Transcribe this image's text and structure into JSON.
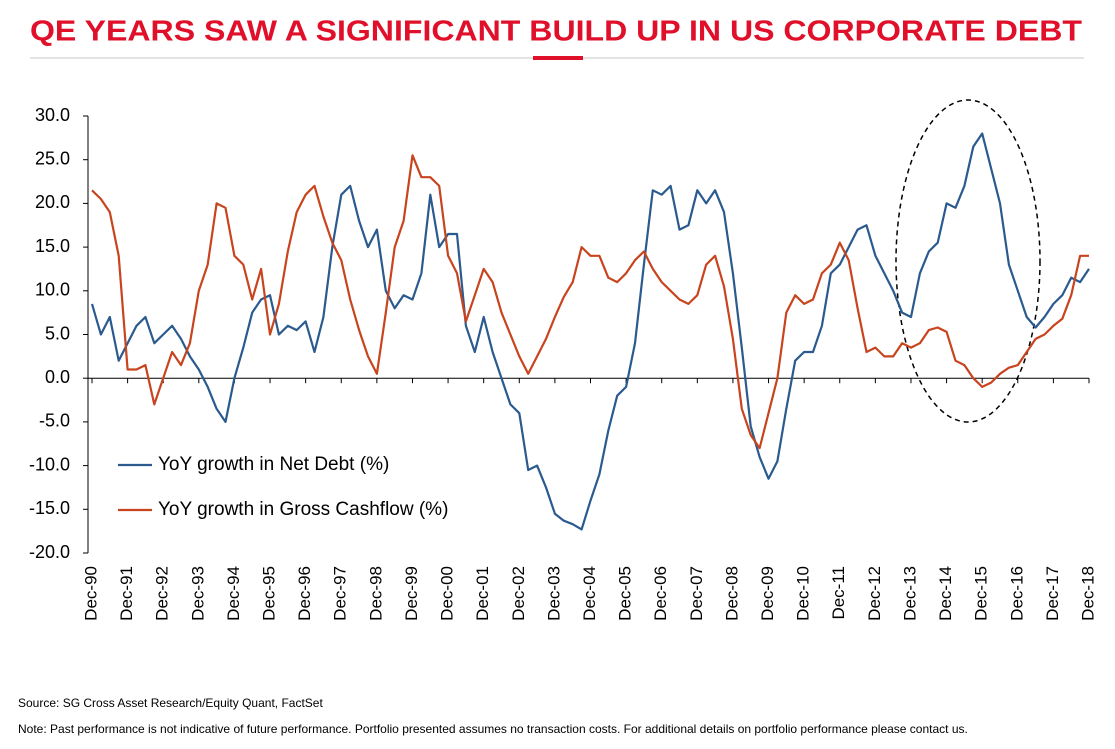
{
  "chart_data": {
    "type": "line",
    "title": "QE YEARS SAW A SIGNIFICANT BUILD UP IN US CORPORATE DEBT",
    "source": "Source: SG Cross Asset Research/Equity Quant, FactSet",
    "note": "Note: Past performance is not indicative of future performance. Portfolio presented assumes no transaction costs. For additional details on portfolio performance please contact us.",
    "categories": [
      "Dec-90",
      null,
      null,
      null,
      "Dec-91",
      null,
      null,
      null,
      "Dec-92",
      null,
      null,
      null,
      "Dec-93",
      null,
      null,
      null,
      "Dec-94",
      null,
      null,
      null,
      "Dec-95",
      null,
      null,
      null,
      "Dec-96",
      null,
      null,
      null,
      "Dec-97",
      null,
      null,
      null,
      "Dec-98",
      null,
      null,
      null,
      "Dec-99",
      null,
      null,
      null,
      "Dec-00",
      null,
      null,
      null,
      "Dec-01",
      null,
      null,
      null,
      "Dec-02",
      null,
      null,
      null,
      "Dec-03",
      null,
      null,
      null,
      "Dec-04",
      null,
      null,
      null,
      "Dec-05",
      null,
      null,
      null,
      "Dec-06",
      null,
      null,
      null,
      "Dec-07",
      null,
      null,
      null,
      "Dec-08",
      null,
      null,
      null,
      "Dec-09",
      null,
      null,
      null,
      "Dec-10",
      null,
      null,
      null,
      "Dec-11",
      null,
      null,
      null,
      "Dec-12",
      null,
      null,
      null,
      "Dec-13",
      null,
      null,
      null,
      "Dec-14",
      null,
      null,
      null,
      "Dec-15",
      null,
      null,
      null,
      "Dec-16",
      null,
      null,
      null,
      "Dec-17",
      null,
      null,
      null,
      "Dec-18"
    ],
    "series": [
      {
        "name": "YoY growth in Net Debt (%)",
        "color": "#2a5a8e",
        "values": [
          8.5,
          5,
          7,
          2,
          4,
          6,
          7,
          4,
          5,
          6,
          4.5,
          2.5,
          1,
          -1,
          -3.5,
          -5,
          0,
          3.5,
          7.5,
          9,
          9.5,
          5,
          6,
          5.5,
          6.5,
          3,
          7,
          15,
          21,
          22,
          18,
          15,
          17,
          10,
          8,
          9.5,
          9,
          12,
          21,
          15,
          16.5,
          16.5,
          6,
          3,
          7,
          3,
          0,
          -3,
          -4,
          -10.5,
          -10,
          -12.5,
          -15.5,
          -16.3,
          -16.7,
          -17.3,
          -14,
          -11,
          -6,
          -2,
          -1,
          4,
          13,
          21.5,
          21,
          22,
          17,
          17.5,
          21.5,
          20,
          21.5,
          19,
          12,
          3.5,
          -5.5,
          -9,
          -11.5,
          -9.5,
          -3.5,
          2,
          3,
          3,
          6,
          12,
          13,
          15,
          17,
          17.5,
          14,
          12,
          10,
          7.5,
          7,
          12,
          14.5,
          15.5,
          20,
          19.5,
          22,
          26.5,
          28,
          24,
          20,
          13,
          10,
          7,
          5.8,
          7,
          8.5,
          9.5,
          11.5,
          11,
          12.5
        ]
      },
      {
        "name": "YoY growth in Gross Cashflow (%)",
        "color": "#c8441e",
        "values": [
          21.5,
          20.5,
          19,
          14,
          1,
          1,
          1.5,
          -3,
          0,
          3,
          1.5,
          4,
          10,
          13,
          20,
          19.5,
          14,
          13,
          9,
          12.5,
          5,
          8.5,
          14.5,
          19,
          21,
          22,
          18.5,
          15.5,
          13.5,
          9,
          5.5,
          2.5,
          0.5,
          7.5,
          15,
          18,
          25.5,
          23,
          23,
          22,
          14,
          12,
          6.5,
          9.5,
          12.5,
          11,
          7.5,
          5,
          2.5,
          0.5,
          2.5,
          4.5,
          7,
          9.3,
          11,
          15,
          14,
          14,
          11.5,
          11,
          12,
          13.5,
          14.5,
          12.5,
          11,
          10,
          9,
          8.5,
          9.5,
          13,
          14,
          10.5,
          4.5,
          -3.5,
          -6.5,
          -8,
          -4,
          0,
          7.5,
          9.5,
          8.5,
          9,
          12,
          13,
          15.5,
          13.5,
          8,
          3,
          3.5,
          2.5,
          2.5,
          4,
          3.5,
          4,
          5.5,
          5.8,
          5.3,
          2,
          1.5,
          0,
          -1,
          -0.5,
          0.5,
          1.2,
          1.5,
          3,
          4.5,
          5,
          6,
          6.8,
          9.5,
          14,
          14
        ]
      }
    ],
    "ylim": [
      -20,
      30
    ],
    "yticks": [
      {
        "value": -20,
        "label": "-20.0"
      },
      {
        "value": -15,
        "label": "-15.0"
      },
      {
        "value": -10,
        "label": "-10.0"
      },
      {
        "value": -5,
        "label": "-5.0"
      },
      {
        "value": 0,
        "label": "0.0"
      },
      {
        "value": 5,
        "label": "5.0"
      },
      {
        "value": 10,
        "label": "10.0"
      },
      {
        "value": 15,
        "label": "15.0"
      },
      {
        "value": 20,
        "label": "20.0"
      },
      {
        "value": 25,
        "label": "25.0"
      },
      {
        "value": 30,
        "label": "30.0"
      }
    ],
    "grid": false,
    "legend": "lower left"
  }
}
